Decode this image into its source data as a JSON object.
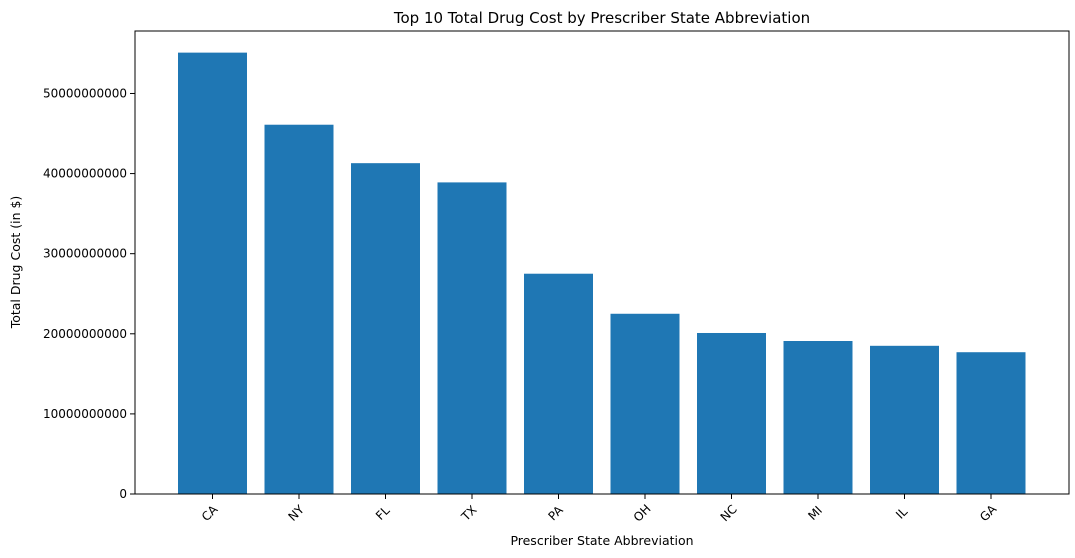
{
  "chart_data": {
    "type": "bar",
    "title": "Top 10 Total Drug Cost by Prescriber State Abbreviation",
    "xlabel": "Prescriber State Abbreviation",
    "ylabel": "Total Drug Cost (in $)",
    "categories": [
      "CA",
      "NY",
      "FL",
      "TX",
      "PA",
      "OH",
      "NC",
      "MI",
      "IL",
      "GA"
    ],
    "values": [
      55100000000,
      46100000000,
      41300000000,
      38900000000,
      27500000000,
      22500000000,
      20100000000,
      19100000000,
      18500000000,
      17700000000
    ],
    "ylim": [
      0,
      57800000000
    ],
    "yticks": [
      0,
      10000000000,
      20000000000,
      30000000000,
      40000000000,
      50000000000
    ],
    "ytick_labels": [
      "0",
      "10000000000",
      "20000000000",
      "30000000000",
      "40000000000",
      "50000000000"
    ],
    "bar_color": "#1f77b4",
    "grid": false,
    "legend": "none"
  }
}
